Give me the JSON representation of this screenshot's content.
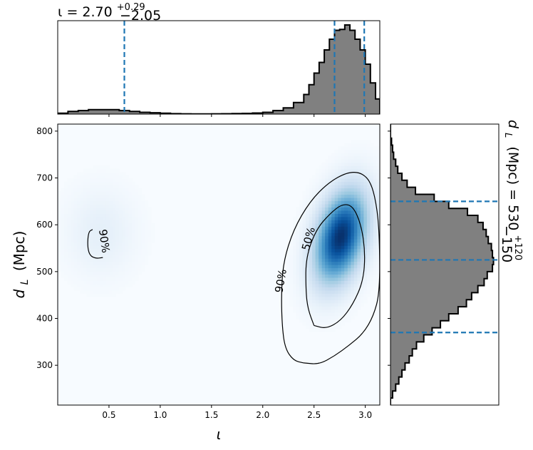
{
  "chart_data": [
    {
      "type": "heatmap",
      "panel": "joint",
      "xlabel": "ι",
      "ylabel_main": "d",
      "ylabel_sub": "L",
      "ylabel_unit": "(Mpc)",
      "xlim": [
        0.0,
        3.14159
      ],
      "ylim": [
        215,
        815
      ],
      "xticks": [
        0.5,
        1.0,
        1.5,
        2.0,
        2.5,
        3.0
      ],
      "xtick_labels": [
        "0.5",
        "1.0",
        "1.5",
        "2.0",
        "2.5",
        "3.0"
      ],
      "yticks": [
        300,
        400,
        500,
        600,
        700,
        800
      ],
      "ytick_labels": [
        "300",
        "400",
        "500",
        "600",
        "700",
        "800"
      ],
      "colormap": "Blues",
      "density_modes": [
        {
          "x": 2.76,
          "y": 575,
          "sx": 0.16,
          "sy": 62,
          "rho": 0.35,
          "weight": 1.0
        },
        {
          "x": 0.42,
          "y": 585,
          "sx": 0.22,
          "sy": 60,
          "rho": 0.0,
          "weight": 0.06
        }
      ],
      "contours": [
        {
          "label": "50%",
          "points": [
            [
              2.5,
              385
            ],
            [
              2.62,
              378
            ],
            [
              2.76,
              395
            ],
            [
              2.88,
              430
            ],
            [
              2.98,
              480
            ],
            [
              3.0,
              540
            ],
            [
              2.96,
              600
            ],
            [
              2.88,
              640
            ],
            [
              2.78,
              645
            ],
            [
              2.66,
              625
            ],
            [
              2.52,
              590
            ],
            [
              2.42,
              530
            ],
            [
              2.42,
              460
            ],
            [
              2.44,
              420
            ],
            [
              2.5,
              385
            ]
          ]
        },
        {
          "label": "90%",
          "points": [
            [
              2.4,
              305
            ],
            [
              2.55,
              302
            ],
            [
              2.7,
              320
            ],
            [
              2.84,
              342
            ],
            [
              2.98,
              368
            ],
            [
              3.08,
              405
            ],
            [
              3.14,
              455
            ],
            [
              3.14,
              560
            ],
            [
              3.12,
              630
            ],
            [
              3.06,
              690
            ],
            [
              2.96,
              712
            ],
            [
              2.82,
              712
            ],
            [
              2.64,
              690
            ],
            [
              2.46,
              650
            ],
            [
              2.3,
              590
            ],
            [
              2.2,
              520
            ],
            [
              2.18,
              450
            ],
            [
              2.19,
              380
            ],
            [
              2.22,
              335
            ],
            [
              2.3,
              310
            ],
            [
              2.4,
              305
            ]
          ]
        },
        {
          "label": "90%",
          "points": [
            [
              0.34,
              590
            ],
            [
              0.3,
              585
            ],
            [
              0.29,
              555
            ],
            [
              0.31,
              535
            ],
            [
              0.37,
              528
            ],
            [
              0.44,
              530
            ]
          ]
        }
      ],
      "contour_label_positions": [
        {
          "text": "50%",
          "x": 2.45,
          "y": 570,
          "angle": -75
        },
        {
          "text": "90%",
          "x": 2.18,
          "y": 480,
          "angle": -80
        },
        {
          "text": "90%",
          "x": 0.45,
          "y": 565,
          "angle": 82
        }
      ]
    },
    {
      "type": "bar",
      "panel": "top-marginal",
      "parameter": "ι",
      "title": "ι = 2.70",
      "title_upper": "+0.29",
      "title_lower": "−2.05",
      "median": 2.7,
      "quantile_lines": [
        0.65,
        2.7,
        2.99
      ],
      "bin_edges": [
        0.0,
        0.1,
        0.2,
        0.3,
        0.4,
        0.5,
        0.6,
        0.7,
        0.8,
        0.9,
        1.0,
        1.1,
        1.2,
        1.3,
        1.4,
        1.5,
        1.6,
        1.7,
        1.8,
        1.9,
        2.0,
        2.1,
        2.2,
        2.3,
        2.4,
        2.45,
        2.5,
        2.55,
        2.6,
        2.65,
        2.7,
        2.75,
        2.8,
        2.85,
        2.9,
        2.95,
        3.0,
        3.05,
        3.1,
        3.14159
      ],
      "values": [
        0.01,
        0.03,
        0.04,
        0.05,
        0.05,
        0.05,
        0.04,
        0.03,
        0.02,
        0.015,
        0.01,
        0.005,
        0.003,
        0.002,
        0.002,
        0.003,
        0.004,
        0.006,
        0.008,
        0.012,
        0.02,
        0.04,
        0.07,
        0.13,
        0.22,
        0.33,
        0.46,
        0.58,
        0.72,
        0.84,
        0.94,
        0.95,
        1.0,
        0.94,
        0.84,
        0.72,
        0.56,
        0.35,
        0.17
      ],
      "ylim": [
        0,
        1.0
      ]
    },
    {
      "type": "bar",
      "panel": "right-marginal",
      "orientation": "horizontal",
      "parameter": "d_L",
      "title": "d",
      "title_sub": "L",
      "title_unit": "(Mpc) = 530",
      "title_upper": "+120",
      "title_lower": "−150",
      "median": 525,
      "quantile_lines": [
        370,
        525,
        650
      ],
      "bin_edges": [
        215,
        230,
        245,
        260,
        275,
        290,
        305,
        320,
        335,
        350,
        365,
        380,
        395,
        410,
        425,
        440,
        455,
        470,
        485,
        500,
        515,
        530,
        545,
        560,
        575,
        590,
        605,
        620,
        635,
        650,
        665,
        680,
        695,
        710,
        725,
        740,
        755,
        770,
        785,
        800,
        815
      ],
      "values": [
        0.0,
        0.02,
        0.05,
        0.08,
        0.11,
        0.14,
        0.18,
        0.21,
        0.25,
        0.32,
        0.4,
        0.48,
        0.56,
        0.65,
        0.73,
        0.78,
        0.84,
        0.9,
        0.93,
        0.98,
        0.99,
        0.98,
        0.97,
        0.94,
        0.92,
        0.89,
        0.84,
        0.74,
        0.56,
        0.42,
        0.24,
        0.16,
        0.11,
        0.07,
        0.05,
        0.03,
        0.02,
        0.01,
        0.0,
        0.0
      ],
      "xlim": [
        0,
        1.0
      ]
    }
  ]
}
